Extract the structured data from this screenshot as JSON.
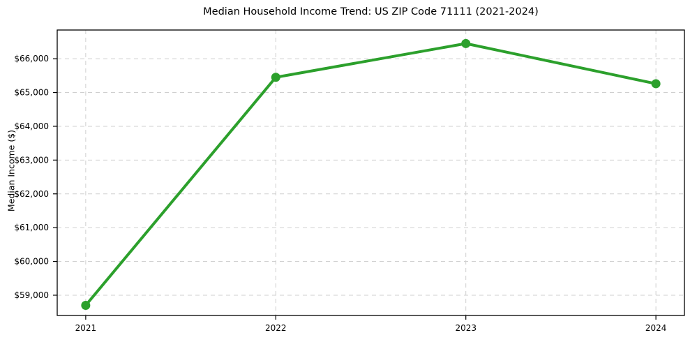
{
  "chart_data": {
    "type": "line",
    "title": "Median Household Income Trend: US ZIP Code 71111 (2021-2024)",
    "xlabel": "",
    "ylabel": "Median Income ($)",
    "x": [
      2021,
      2022,
      2023,
      2024
    ],
    "series": [
      {
        "name": "Median Household Income",
        "values": [
          58700,
          65450,
          66450,
          65260
        ]
      }
    ],
    "xtick_labels": [
      "2021",
      "2022",
      "2023",
      "2024"
    ],
    "ytick_values": [
      59000,
      60000,
      61000,
      62000,
      63000,
      64000,
      65000,
      66000
    ],
    "ytick_labels": [
      "$59,000",
      "$60,000",
      "$61,000",
      "$62,000",
      "$63,000",
      "$64,000",
      "$65,000",
      "$66,000"
    ],
    "xlim": [
      2020.85,
      2024.15
    ],
    "ylim": [
      58400,
      66850
    ],
    "grid": true,
    "grid_style": "dashed",
    "legend": false,
    "line_color": "#2ca02c",
    "marker": "circle",
    "grid_color": "#cfcfcf",
    "spine_color": "#000000",
    "background_color": "#ffffff"
  }
}
